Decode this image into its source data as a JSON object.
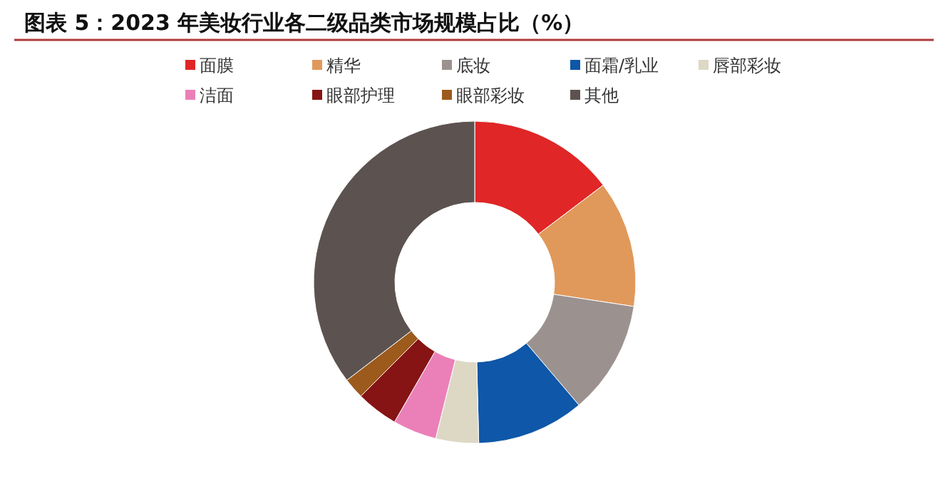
{
  "chart_data": {
    "type": "donut",
    "title": "图表 5：2023 年美妆行业各二级品类市场规模占比（%）",
    "categories": [
      "面膜",
      "精华",
      "底妆",
      "面霜/乳业",
      "唇部彩妆",
      "洁面",
      "眼部护理",
      "眼部彩妆",
      "其他"
    ],
    "values": [
      14.7,
      12.7,
      11.4,
      10.8,
      4.3,
      4.4,
      4.2,
      2.1,
      35.4
    ],
    "colors": [
      "#e02626",
      "#e0995a",
      "#9b9290",
      "#0f57a8",
      "#ddd8c4",
      "#eb80b8",
      "#861414",
      "#9c5a1d",
      "#5c5350"
    ],
    "legend": "top"
  }
}
